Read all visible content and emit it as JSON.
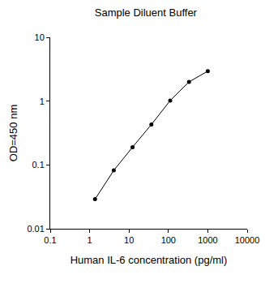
{
  "chart_data": {
    "type": "line",
    "title": "Sample Diluent Buffer",
    "x_label": "Human IL-6 concentration (pg/ml)",
    "y_label": "OD=450 nm",
    "x": [
      1.37,
      4.1,
      12.3,
      37,
      111,
      333,
      1000
    ],
    "values": [
      0.029,
      0.082,
      0.19,
      0.43,
      1.02,
      2.0,
      2.95
    ],
    "color": "#000000",
    "marker": "circle",
    "line_style": "solid",
    "log": true,
    "grid": false,
    "xlim": [
      0.1,
      10000
    ],
    "xticks": [
      0.1,
      1,
      10,
      100,
      1000,
      10000
    ],
    "ylim": [
      0.01,
      10
    ],
    "yticks": [
      0.01,
      0.1,
      1,
      10
    ]
  }
}
